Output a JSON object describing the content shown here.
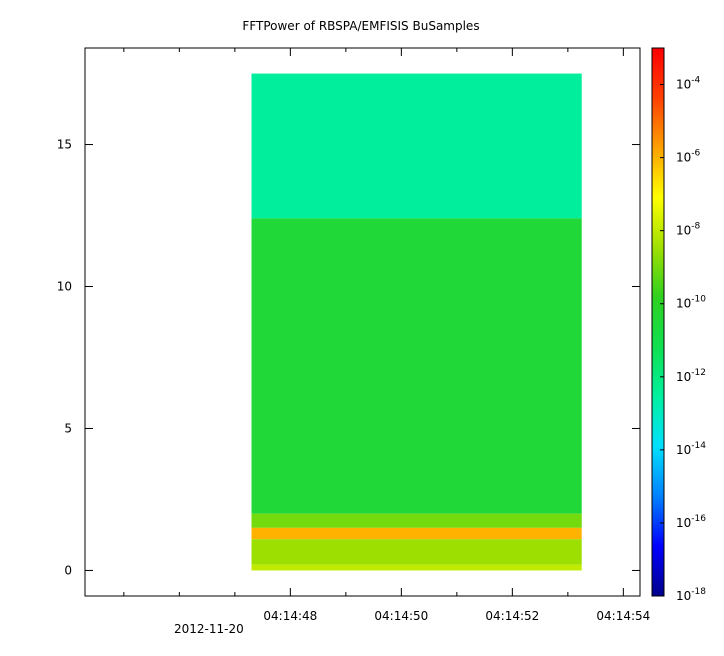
{
  "chart_data": {
    "type": "heatmap",
    "title": "FFTPower of RBSPA/EMFISIS  BuSamples",
    "xlabel": "",
    "ylabel": "",
    "x_tick_labels": [
      "04:14:48",
      "04:14:50",
      "04:14:52",
      "04:14:54"
    ],
    "x_tick_values_seconds": [
      48,
      50,
      52,
      54
    ],
    "x_date_label": "2012-11-20",
    "xlim_seconds": [
      44.3,
      54.3
    ],
    "data_x_range_seconds": [
      47.3,
      53.25
    ],
    "y_tick_labels": [
      "0",
      "5",
      "10",
      "15"
    ],
    "y_tick_values": [
      0,
      5,
      10,
      15
    ],
    "ylim": [
      -0.9,
      18.4
    ],
    "data_y_range": [
      0,
      17.5
    ],
    "colorbar": {
      "scale": "log",
      "range": [
        "1e-18",
        "1e-3"
      ],
      "tick_exponents": [
        -4,
        -6,
        -8,
        -10,
        -12,
        -14,
        -16,
        -18
      ],
      "colormap": [
        "#00008b",
        "#0000ff",
        "#0080ff",
        "#00e0ff",
        "#00f0a0",
        "#10e050",
        "#30d020",
        "#a0e000",
        "#ffff00",
        "#ffa000",
        "#ff4000",
        "#ff0000"
      ]
    },
    "bands": [
      {
        "y_range": [
          12.4,
          17.5
        ],
        "level_exponent": -12.5
      },
      {
        "y_range": [
          2.0,
          12.4
        ],
        "level_exponent": -10.5
      },
      {
        "y_range": [
          1.5,
          2.0
        ],
        "level_exponent": -9.0
      },
      {
        "y_range": [
          1.1,
          1.5
        ],
        "level_exponent": -6.0
      },
      {
        "y_range": [
          0.2,
          1.1
        ],
        "level_exponent": -8.5
      },
      {
        "y_range": [
          0.0,
          0.2
        ],
        "level_exponent": -8.0
      }
    ]
  }
}
